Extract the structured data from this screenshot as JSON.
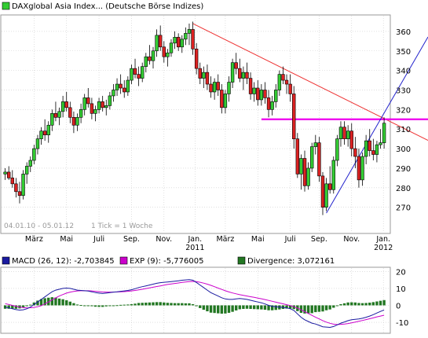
{
  "header": {
    "legend_label": "DAXglobal Asia Index... (Deutsche Börse Indizes)",
    "legend_color": "#33cc33"
  },
  "info": {
    "range": "04.01.10 - 05.01.12",
    "tick": "1 Tick = 1 Woche"
  },
  "colors": {
    "up": "#33cc33",
    "down": "#dd2222",
    "trend_down": "#ee3333",
    "trend_up": "#2222cc",
    "support": "#ee00ee",
    "macd": "#1a1aa0",
    "signal": "#cc00cc",
    "divergence": "#227722",
    "grid": "#cccccc"
  },
  "chart_data": [
    {
      "type": "candlestick",
      "title": "DAXglobal Asia Index... (Deutsche Börse Indizes)",
      "period": "04.01.10 - 05.01.12",
      "interval": "1 Tick = 1 Woche",
      "ylim": [
        257,
        368
      ],
      "y_ticks": [
        270,
        280,
        290,
        300,
        310,
        320,
        330,
        340,
        350,
        360
      ],
      "x_labels": [
        {
          "label": "März",
          "x": 8
        },
        {
          "label": "Mai",
          "x": 17
        },
        {
          "label": "Juli",
          "x": 26
        },
        {
          "label": "Sep.",
          "x": 35
        },
        {
          "label": "Nov.",
          "x": 44
        },
        {
          "label": "Jan.",
          "sub": "2011",
          "x": 52.6
        },
        {
          "label": "März",
          "x": 61
        },
        {
          "label": "Mai",
          "x": 70
        },
        {
          "label": "Juli",
          "x": 79
        },
        {
          "label": "Sep.",
          "x": 87
        },
        {
          "label": "Nov.",
          "x": 96
        },
        {
          "label": "Jan.",
          "sub": "2012",
          "x": 104.8
        }
      ],
      "x_range": [
        -1,
        106.5
      ],
      "trendlines": [
        {
          "name": "resistance",
          "x1": 52,
          "y1": 364,
          "x2": 106.5,
          "y2": 314
        },
        {
          "name": "support-line",
          "x1": 71,
          "y1": 315,
          "x2": 106.5,
          "y2": 315
        },
        {
          "name": "uptrend",
          "x1": 89,
          "y1": 267,
          "x2": 106.5,
          "y2": 323
        }
      ],
      "candles": [
        [
          287,
          290,
          284,
          288
        ],
        [
          288,
          291,
          284,
          285
        ],
        [
          285,
          289,
          280,
          282
        ],
        [
          282,
          285,
          275,
          278
        ],
        [
          278,
          283,
          272,
          276
        ],
        [
          276,
          289,
          274,
          287
        ],
        [
          287,
          293,
          282,
          291
        ],
        [
          291,
          296,
          288,
          294
        ],
        [
          294,
          302,
          292,
          300
        ],
        [
          300,
          307,
          297,
          305
        ],
        [
          305,
          311,
          302,
          309
        ],
        [
          309,
          315,
          304,
          307
        ],
        [
          307,
          314,
          303,
          312
        ],
        [
          312,
          320,
          309,
          318
        ],
        [
          318,
          324,
          314,
          316
        ],
        [
          316,
          321,
          312,
          319
        ],
        [
          319,
          327,
          316,
          324
        ],
        [
          324,
          329,
          319,
          321
        ],
        [
          321,
          324,
          313,
          316
        ],
        [
          316,
          319,
          308,
          312
        ],
        [
          312,
          318,
          309,
          316
        ],
        [
          316,
          323,
          313,
          320
        ],
        [
          320,
          328,
          317,
          326
        ],
        [
          326,
          331,
          321,
          323
        ],
        [
          323,
          326,
          315,
          318
        ],
        [
          318,
          322,
          314,
          320
        ],
        [
          320,
          326,
          318,
          324
        ],
        [
          324,
          327,
          319,
          321
        ],
        [
          321,
          325,
          317,
          322
        ],
        [
          322,
          329,
          320,
          327
        ],
        [
          327,
          333,
          324,
          330
        ],
        [
          330,
          336,
          327,
          333
        ],
        [
          333,
          338,
          328,
          331
        ],
        [
          331,
          335,
          326,
          329
        ],
        [
          329,
          337,
          327,
          335
        ],
        [
          335,
          343,
          333,
          341
        ],
        [
          341,
          346,
          336,
          338
        ],
        [
          338,
          342,
          332,
          336
        ],
        [
          336,
          344,
          334,
          342
        ],
        [
          342,
          349,
          339,
          347
        ],
        [
          347,
          353,
          343,
          345
        ],
        [
          345,
          352,
          341,
          350
        ],
        [
          350,
          361,
          347,
          358
        ],
        [
          358,
          363,
          350,
          352
        ],
        [
          352,
          355,
          344,
          347
        ],
        [
          347,
          351,
          342,
          349
        ],
        [
          349,
          356,
          347,
          354
        ],
        [
          354,
          360,
          351,
          357
        ],
        [
          357,
          359,
          350,
          352
        ],
        [
          352,
          358,
          349,
          356
        ],
        [
          356,
          362,
          353,
          359
        ],
        [
          359,
          364,
          353,
          361
        ],
        [
          361,
          365,
          348,
          351
        ],
        [
          351,
          354,
          338,
          341
        ],
        [
          341,
          344,
          333,
          336
        ],
        [
          336,
          342,
          331,
          339
        ],
        [
          339,
          343,
          330,
          333
        ],
        [
          333,
          337,
          326,
          329
        ],
        [
          329,
          336,
          325,
          334
        ],
        [
          334,
          338,
          327,
          330
        ],
        [
          330,
          333,
          318,
          321
        ],
        [
          321,
          330,
          318,
          328
        ],
        [
          328,
          337,
          324,
          334
        ],
        [
          334,
          346,
          331,
          344
        ],
        [
          344,
          349,
          338,
          341
        ],
        [
          341,
          346,
          334,
          336
        ],
        [
          336,
          342,
          330,
          339
        ],
        [
          339,
          344,
          333,
          336
        ],
        [
          336,
          339,
          325,
          328
        ],
        [
          328,
          334,
          324,
          331
        ],
        [
          331,
          335,
          322,
          325
        ],
        [
          325,
          333,
          322,
          330
        ],
        [
          330,
          334,
          323,
          326
        ],
        [
          326,
          330,
          316,
          320
        ],
        [
          320,
          327,
          317,
          324
        ],
        [
          324,
          333,
          321,
          330
        ],
        [
          330,
          340,
          327,
          338
        ],
        [
          338,
          342,
          333,
          335
        ],
        [
          335,
          338,
          328,
          333
        ],
        [
          333,
          338,
          324,
          328
        ],
        [
          328,
          332,
          300,
          305
        ],
        [
          305,
          308,
          285,
          287
        ],
        [
          287,
          297,
          279,
          295
        ],
        [
          295,
          299,
          278,
          281
        ],
        [
          281,
          293,
          279,
          290
        ],
        [
          290,
          303,
          288,
          301
        ],
        [
          301,
          307,
          297,
          303
        ],
        [
          303,
          306,
          283,
          286
        ],
        [
          286,
          288,
          266,
          270
        ],
        [
          270,
          285,
          268,
          282
        ],
        [
          282,
          291,
          277,
          279
        ],
        [
          279,
          296,
          277,
          294
        ],
        [
          294,
          307,
          291,
          305
        ],
        [
          305,
          314,
          301,
          311
        ],
        [
          311,
          314,
          302,
          305
        ],
        [
          305,
          312,
          301,
          309
        ],
        [
          309,
          313,
          296,
          300
        ],
        [
          300,
          306,
          290,
          296
        ],
        [
          296,
          300,
          280,
          284
        ],
        [
          284,
          298,
          281,
          296
        ],
        [
          296,
          307,
          292,
          304
        ],
        [
          304,
          310,
          296,
          299
        ],
        [
          299,
          305,
          294,
          297
        ],
        [
          297,
          304,
          293,
          302
        ],
        [
          302,
          310,
          300,
          303
        ],
        [
          303,
          316,
          300,
          313
        ]
      ]
    },
    {
      "type": "line",
      "title": "MACD",
      "ylim": [
        -16,
        22
      ],
      "y_ticks": [
        -10,
        0,
        10,
        20
      ],
      "series": [
        {
          "name": "MACD (26, 12)",
          "value_text": "-2,703845",
          "values": [
            -1,
            -1.5,
            -2,
            -2.5,
            -2.8,
            -2.6,
            -2,
            -1,
            0.5,
            2,
            3.5,
            5,
            6.5,
            8,
            9,
            9.5,
            10,
            10.2,
            10,
            9.5,
            9,
            8.8,
            8.6,
            8.4,
            8,
            7.5,
            7.2,
            7,
            7.2,
            7.5,
            7.8,
            8,
            8.3,
            8.5,
            8.8,
            9.2,
            9.8,
            10.5,
            11,
            11.5,
            12,
            12.5,
            13,
            13.4,
            13.6,
            13.8,
            14,
            14.2,
            14.5,
            14.8,
            15,
            15.2,
            14.8,
            13.5,
            12,
            10.5,
            9,
            7.5,
            6.5,
            5.5,
            4.5,
            3.8,
            3.5,
            3.5,
            3.8,
            4,
            3.8,
            3.5,
            3,
            2.5,
            2,
            1.5,
            0.8,
            0,
            -0.5,
            -0.8,
            -1,
            -1.2,
            -1.5,
            -2,
            -3,
            -5,
            -7,
            -8.5,
            -9.5,
            -10.5,
            -11,
            -11.8,
            -12.6,
            -12.8,
            -13,
            -12.5,
            -11.5,
            -10.5,
            -9.8,
            -9,
            -8.5,
            -8.2,
            -8,
            -7.6,
            -7,
            -6.3,
            -5.5,
            -4.5,
            -3.6,
            -2.7
          ]
        },
        {
          "name": "EXP (9)",
          "value_text": "-5,776005",
          "values": [
            1,
            0.5,
            0,
            -0.5,
            -1,
            -1.3,
            -1.5,
            -1.4,
            -1.2,
            -0.8,
            -0.2,
            0.8,
            2,
            3.2,
            4.4,
            5.5,
            6.4,
            7.2,
            7.8,
            8.2,
            8.5,
            8.6,
            8.6,
            8.6,
            8.5,
            8.3,
            8.1,
            7.9,
            7.8,
            7.8,
            7.8,
            7.9,
            8,
            8.1,
            8.3,
            8.5,
            8.8,
            9.1,
            9.5,
            9.9,
            10.3,
            10.7,
            11.1,
            11.5,
            11.9,
            12.3,
            12.6,
            12.9,
            13.2,
            13.5,
            13.8,
            14,
            14.1,
            14,
            13.6,
            13.1,
            12.5,
            11.8,
            11,
            10.2,
            9.4,
            8.6,
            7.9,
            7.3,
            6.8,
            6.3,
            5.9,
            5.5,
            5.1,
            4.7,
            4.3,
            3.9,
            3.4,
            2.9,
            2.4,
            1.9,
            1.4,
            0.9,
            0.4,
            -0.1,
            -0.8,
            -1.6,
            -2.6,
            -3.7,
            -4.8,
            -5.9,
            -7,
            -8,
            -9,
            -9.9,
            -10.6,
            -11.1,
            -11.3,
            -11.2,
            -11,
            -10.7,
            -10.3,
            -9.9,
            -9.4,
            -8.9,
            -8.4,
            -7.9,
            -7.4,
            -6.8,
            -6.3,
            -5.8
          ]
        },
        {
          "name": "Divergence",
          "value_text": "3,072161",
          "type": "bar",
          "values": [
            -2,
            -2,
            -2,
            -2,
            -1.8,
            -1.3,
            -0.5,
            0.4,
            1.7,
            2.8,
            3.7,
            4.2,
            4.5,
            4.8,
            4.6,
            4,
            3.6,
            3,
            2.2,
            1.3,
            0.5,
            0.2,
            0,
            -0.2,
            -0.5,
            -0.8,
            -0.9,
            -0.9,
            -0.6,
            -0.3,
            0,
            0.1,
            0.3,
            0.4,
            0.5,
            0.7,
            1,
            1.4,
            1.5,
            1.6,
            1.7,
            1.8,
            1.9,
            1.9,
            1.7,
            1.5,
            1.4,
            1.3,
            1.3,
            1.3,
            1.2,
            1.2,
            0.7,
            -0.5,
            -1.6,
            -2.6,
            -3.5,
            -4.3,
            -4.5,
            -4.7,
            -4.9,
            -4.8,
            -4.4,
            -3.8,
            -3,
            -2.3,
            -2.1,
            -2,
            -2.1,
            -2.2,
            -2.3,
            -2.4,
            -2.6,
            -2.9,
            -2.9,
            -2.7,
            -2.4,
            -2.1,
            -1.9,
            -1.9,
            -2.2,
            -3.4,
            -4.4,
            -4.8,
            -4.7,
            -4.6,
            -4,
            -3.8,
            -3.6,
            -2.9,
            -2.4,
            -1.4,
            -0.2,
            0.7,
            1.2,
            1.7,
            1.8,
            1.7,
            1.4,
            1.3,
            1.4,
            1.6,
            1.9,
            2.3,
            2.7,
            3.1
          ]
        }
      ]
    }
  ]
}
